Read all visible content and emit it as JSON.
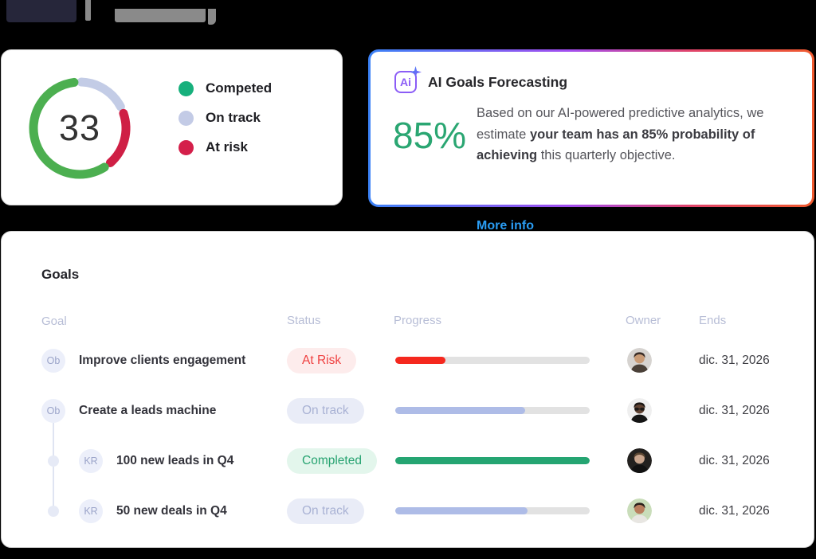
{
  "summary_card": {
    "value": "33",
    "legend": [
      {
        "label": "Competed",
        "color": "#17b07c"
      },
      {
        "label": "On track",
        "color": "#c3cbe6"
      },
      {
        "label": "At risk",
        "color": "#d41f4a"
      }
    ]
  },
  "chart_data": {
    "type": "pie",
    "subtype": "donut",
    "title": "",
    "center_value": "33",
    "legend_position": "right",
    "segments": [
      {
        "label": "On track",
        "value": 17,
        "color": "#c3cce6"
      },
      {
        "label": "At risk",
        "value": 19,
        "color": "#cf1f45"
      },
      {
        "label": "Competed",
        "value": 58,
        "color": "#4caf50"
      }
    ]
  },
  "ai_card": {
    "icon": "ai-sparkle-icon",
    "badge_text": "Ai",
    "title": "AI Goals Forecasting",
    "percent": "85%",
    "body_prefix": "Based on our AI-powered predictive analytics, we estimate ",
    "body_bold": "your team has an 85% probability of achieving",
    "body_suffix": " this quarterly objective.",
    "link_label": "More info",
    "accent_green": "#2aa672",
    "link_blue": "#2a9df4"
  },
  "goals_card": {
    "title": "Goals",
    "columns": [
      "Goal",
      "Status",
      "Progress",
      "Owner",
      "Ends"
    ],
    "rows": [
      {
        "badge": "Ob",
        "name": "Improve clients engagement",
        "status": "At Risk",
        "status_type": "at-risk",
        "progress": 26,
        "ends": "dic. 31, 2026",
        "indent": false,
        "avatar": {
          "bg": "#d6d3d0",
          "skin": "#c99b76",
          "hair": "#3b2e28",
          "shirt": "#4a4038",
          "glasses": false
        }
      },
      {
        "badge": "Ob",
        "name": "Create a leads machine",
        "status": "On track",
        "status_type": "on-track",
        "progress": 67,
        "ends": "dic. 31, 2026",
        "indent": false,
        "avatar": {
          "bg": "#efefef",
          "skin": "#5f4232",
          "hair": "#1c1714",
          "shirt": "#141414",
          "glasses": true
        }
      },
      {
        "badge": "KR",
        "name": "100 new leads in Q4",
        "status": "Completed",
        "status_type": "completed",
        "progress": 100,
        "ends": "dic. 31, 2026",
        "indent": true,
        "avatar": {
          "bg": "#23211f",
          "skin": "#c9a58d",
          "hair": "#5a4632",
          "shirt": "#111111",
          "glasses": false
        }
      },
      {
        "badge": "KR",
        "name": "50 new deals in Q4",
        "status": "On track",
        "status_type": "on-track",
        "progress": 68,
        "ends": "dic. 31, 2026",
        "indent": true,
        "avatar": {
          "bg": "#c9ddba",
          "skin": "#b97e5e",
          "hair": "#2b211c",
          "shirt": "#e8e6e2",
          "glasses": false
        }
      }
    ]
  }
}
